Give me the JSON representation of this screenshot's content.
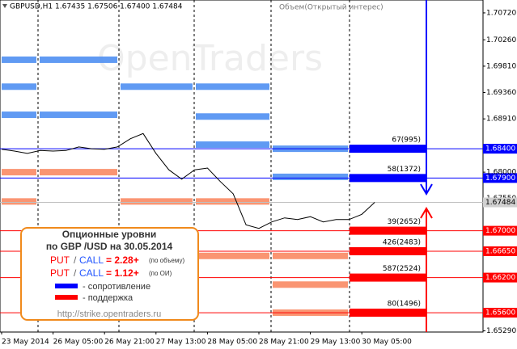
{
  "chart_data": {
    "type": "line",
    "title": "GBPUSD,H1  1.67435 1.67506 1.67400 1.67484",
    "subtitle": "Объем(Открытый интерес)",
    "watermark": "OpenTraders",
    "categories": [
      "23 May 2014",
      null,
      null,
      null,
      "26 May 05:00",
      null,
      null,
      null,
      "26 May 21:00",
      null,
      null,
      null,
      "27 May 13:00",
      null,
      null,
      null,
      "28 May 05:00",
      null,
      null,
      null,
      "28 May 21:00",
      null,
      null,
      null,
      "29 May 13:00",
      null,
      null,
      null,
      "30 May 05:00",
      null
    ],
    "values": [
      1.6839,
      1.6836,
      1.6832,
      1.6837,
      1.6836,
      1.6837,
      1.6843,
      1.684,
      1.6839,
      1.6843,
      1.6857,
      1.6866,
      1.6832,
      1.6804,
      1.6788,
      1.6804,
      1.6807,
      1.6784,
      1.6763,
      1.671,
      1.6704,
      1.6715,
      1.6722,
      1.6719,
      1.6724,
      1.6715,
      1.6719,
      1.6719,
      1.6728,
      1.67484
    ],
    "color": "#000000",
    "ylim": [
      1.6527,
      1.7094
    ],
    "yticks": [
      {
        "value": 1.7072,
        "label": "1.70720"
      },
      {
        "value": 1.7026,
        "label": "1.70260"
      },
      {
        "value": 1.6981,
        "label": "1.69810"
      },
      {
        "value": 1.6936,
        "label": "1.69360"
      },
      {
        "value": 1.6891,
        "label": "1.68910"
      },
      {
        "value": 1.68,
        "label": "1.68000"
      },
      {
        "value": 1.6755,
        "label": "1.67550"
      },
      {
        "value": 1.6529,
        "label": "1.65290"
      }
    ],
    "levels": [
      {
        "value": 1.684,
        "label": "1.68400",
        "color": "#0000ff",
        "volume": "67(995)"
      },
      {
        "value": 1.679,
        "label": "1.67900",
        "color": "#0000ff",
        "volume": "58(1372)"
      },
      {
        "value": 1.67,
        "label": "1.67000",
        "color": "#ff0000",
        "volume": "39(2652)"
      },
      {
        "value": 1.6665,
        "label": "1.66650",
        "color": "#ff0000",
        "volume": "426(2483)"
      },
      {
        "value": 1.662,
        "label": "1.66200",
        "color": "#ff0000",
        "volume": "587(2524)"
      },
      {
        "value": 1.656,
        "label": "1.65600",
        "color": "#ff0000",
        "volume": "80(1496)"
      }
    ],
    "current": {
      "value": 1.67484,
      "label": "1.67484"
    },
    "history": [
      [
        {
          "price": 1.6992,
          "color": "#4f8ff2"
        },
        {
          "price": 1.6946,
          "color": "#4f8ff2"
        },
        {
          "price": 1.6898,
          "color": "#4f8ff2"
        },
        {
          "price": 1.68,
          "color": "#f98a63"
        },
        {
          "price": 1.675,
          "color": "#f98a63"
        }
      ],
      [
        {
          "price": 1.6992,
          "color": "#4f8ff2"
        },
        {
          "price": 1.6898,
          "color": "#4f8ff2"
        },
        {
          "price": 1.68,
          "color": "#f98a63"
        }
      ],
      [
        {
          "price": 1.6946,
          "color": "#4f8ff2"
        },
        {
          "price": 1.675,
          "color": "#f98a63"
        }
      ],
      [
        {
          "price": 1.6946,
          "color": "#4f8ff2"
        },
        {
          "price": 1.6895,
          "color": "#4f8ff2"
        },
        {
          "price": 1.6847,
          "color": "#4f8ff2"
        },
        {
          "price": 1.675,
          "color": "#f98a63"
        },
        {
          "price": 1.6657,
          "color": "#f98a63"
        }
      ],
      [
        {
          "price": 1.684,
          "color": "#4f8ff2"
        },
        {
          "price": 1.6792,
          "color": "#4f8ff2"
        },
        {
          "price": 1.6657,
          "color": "#f98a63"
        },
        {
          "price": 1.6608,
          "color": "#f98a63"
        },
        {
          "price": 1.656,
          "color": "#f98a63"
        }
      ]
    ],
    "info": {
      "line1": "Опционные уровни",
      "line2": "по GBP /USD на 30.05.2014",
      "put": "PUT",
      "slash": "/",
      "call": "CALL",
      "ratio1": "= 2.28+",
      "note1": "(по объему)",
      "ratio2": "= 1.12+",
      "note2": "(по ОИ)",
      "resistance": "- сопротивление",
      "support": "- поддержка",
      "url": "http://strike.opentraders.ru"
    }
  }
}
